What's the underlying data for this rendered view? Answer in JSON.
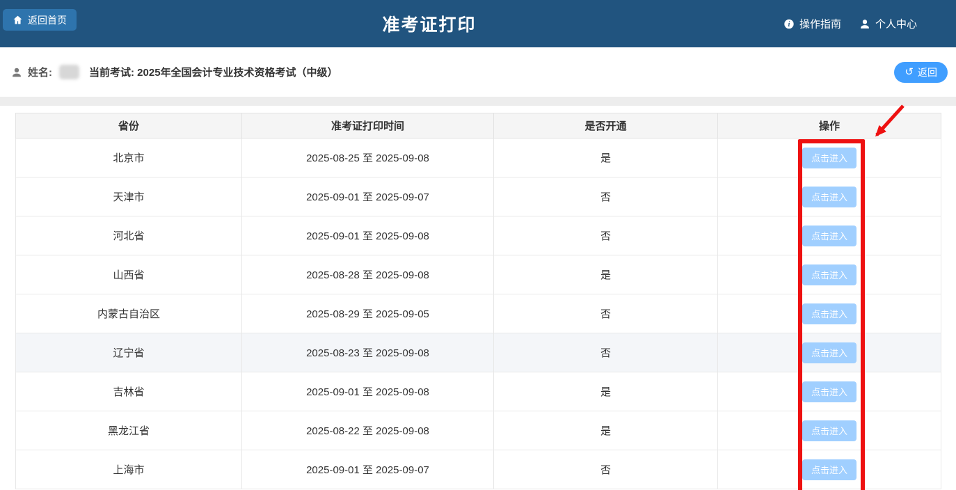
{
  "header": {
    "back_home_label": "返回首页",
    "title": "准考证打印",
    "guide_label": "操作指南",
    "profile_label": "个人中心"
  },
  "subheader": {
    "name_label": "姓名:",
    "current_exam": "当前考试: 2025年全国会计专业技术资格考试（中级）",
    "back_label": "返回"
  },
  "table": {
    "columns": [
      "省份",
      "准考证打印时间",
      "是否开通",
      "操作"
    ],
    "action_label": "点击进入",
    "rows": [
      {
        "province": "北京市",
        "period": "2025-08-25 至 2025-09-08",
        "open": "是",
        "highlighted": false
      },
      {
        "province": "天津市",
        "period": "2025-09-01 至 2025-09-07",
        "open": "否",
        "highlighted": false
      },
      {
        "province": "河北省",
        "period": "2025-09-01 至 2025-09-08",
        "open": "否",
        "highlighted": false
      },
      {
        "province": "山西省",
        "period": "2025-08-28 至 2025-09-08",
        "open": "是",
        "highlighted": false
      },
      {
        "province": "内蒙古自治区",
        "period": "2025-08-29 至 2025-09-05",
        "open": "否",
        "highlighted": false
      },
      {
        "province": "辽宁省",
        "period": "2025-08-23 至 2025-09-08",
        "open": "否",
        "highlighted": true
      },
      {
        "province": "吉林省",
        "period": "2025-09-01 至 2025-09-08",
        "open": "是",
        "highlighted": false
      },
      {
        "province": "黑龙江省",
        "period": "2025-08-22 至 2025-09-08",
        "open": "是",
        "highlighted": false
      },
      {
        "province": "上海市",
        "period": "2025-09-01 至 2025-09-07",
        "open": "否",
        "highlighted": false
      }
    ]
  },
  "icons": {
    "refresh_glyph": "↺"
  },
  "colors": {
    "header_bg": "#21547f",
    "back_home_button_bg": "#2e74ad",
    "primary_button": "#409eff",
    "action_button": "#a0cfff",
    "annotation_red": "#ee1111",
    "table_header_bg": "#f5f5f5",
    "highlight_row_bg": "#f4f6f9"
  }
}
